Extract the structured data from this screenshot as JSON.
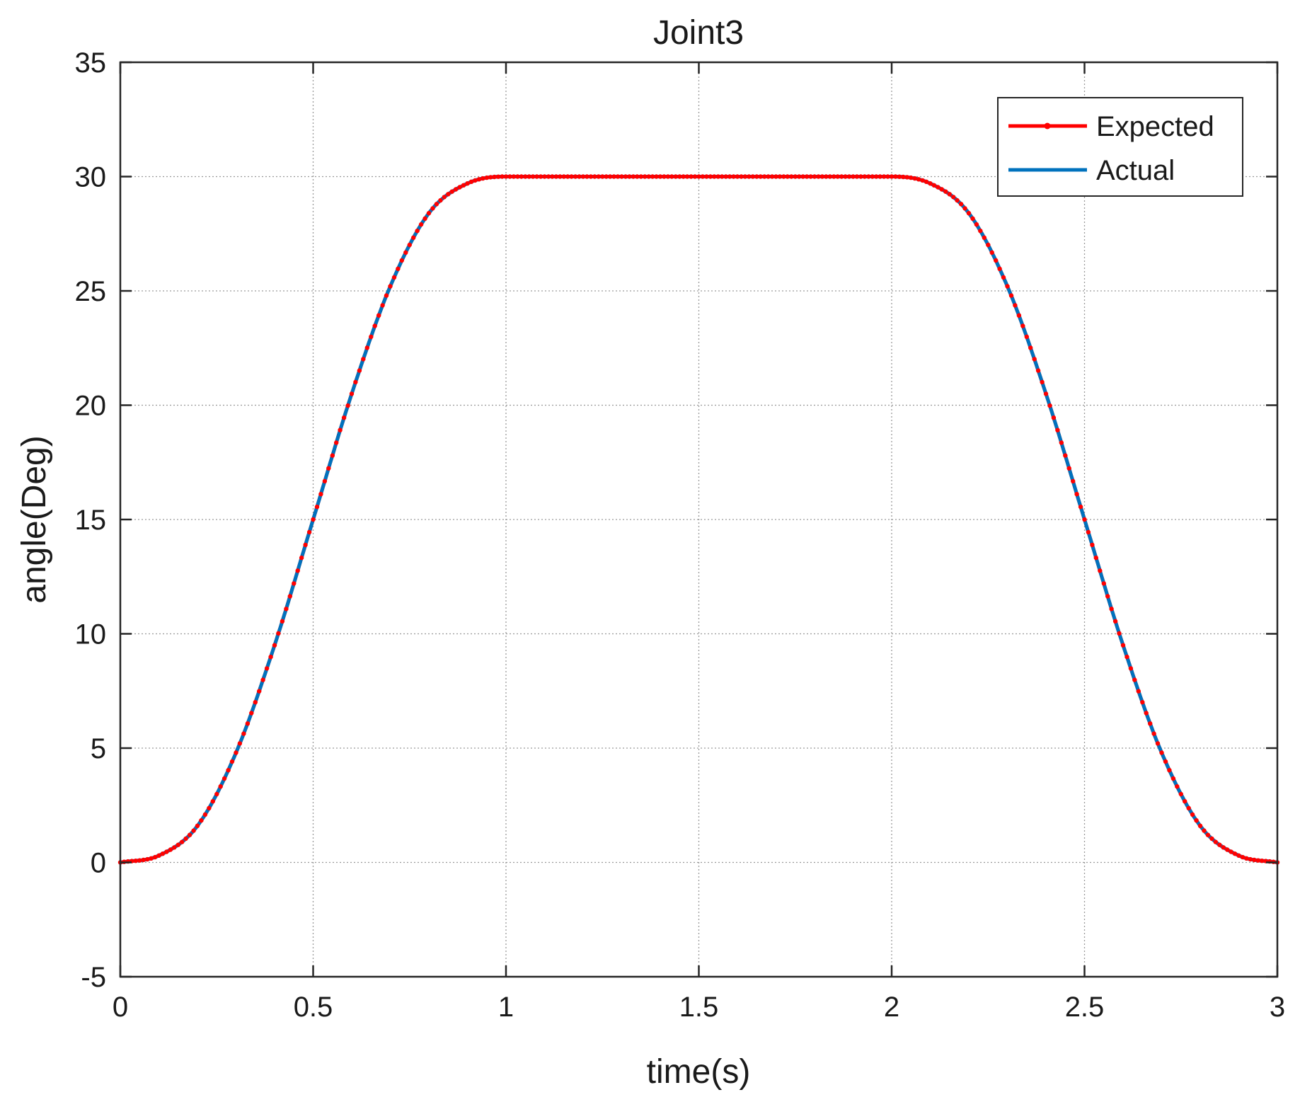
{
  "chart_data": {
    "type": "line",
    "title": "Joint3",
    "xlabel": "time(s)",
    "ylabel": "angle(Deg)",
    "xlim": [
      0,
      3
    ],
    "ylim": [
      -5,
      35
    ],
    "xticks": [
      0,
      0.5,
      1,
      1.5,
      2,
      2.5,
      3
    ],
    "xtick_labels": [
      "0",
      "0.5",
      "1",
      "1.5",
      "2",
      "2.5",
      "3"
    ],
    "yticks": [
      -5,
      0,
      5,
      10,
      15,
      20,
      25,
      30,
      35
    ],
    "ytick_labels": [
      "-5",
      "0",
      "5",
      "10",
      "15",
      "20",
      "25",
      "30",
      "35"
    ],
    "grid": true,
    "legend": "top-right",
    "x": [
      0,
      0.1,
      0.2,
      0.3,
      0.4,
      0.5,
      0.6,
      0.7,
      0.8,
      0.9,
      1.0,
      1.5,
      2.0,
      2.1,
      2.2,
      2.3,
      2.4,
      2.5,
      2.6,
      2.7,
      2.8,
      2.9,
      3.0
    ],
    "series": [
      {
        "name": "Expected",
        "color": "#ff0000",
        "marker": "dot",
        "values": [
          0,
          0.3,
          1.6,
          4.8,
          9.5,
          15.0,
          20.5,
          25.2,
          28.4,
          29.7,
          30.0,
          30.0,
          30.0,
          29.7,
          28.4,
          25.2,
          20.5,
          15.0,
          9.5,
          4.8,
          1.6,
          0.3,
          0
        ]
      },
      {
        "name": "Actual",
        "color": "#0072bd",
        "marker": "none",
        "values": [
          0,
          0.3,
          1.6,
          4.8,
          9.5,
          15.0,
          20.5,
          25.2,
          28.4,
          29.7,
          30.0,
          30.0,
          30.0,
          29.7,
          28.4,
          25.2,
          20.5,
          15.0,
          9.5,
          4.8,
          1.6,
          0.3,
          0
        ]
      }
    ]
  }
}
